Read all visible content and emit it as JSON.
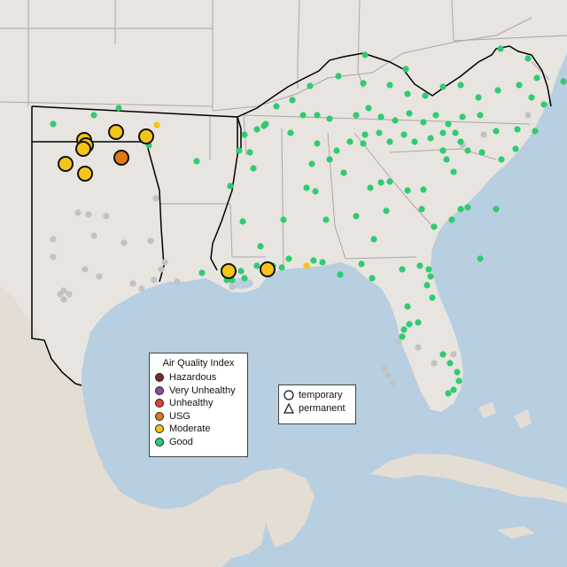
{
  "colors": {
    "water": "#b7cfe0",
    "land": "#e8e4df",
    "land_mexico": "#e4ddd3",
    "state_border": "#a9a9a9",
    "region_border": "#000000",
    "hazardous": "#7e2a22",
    "very_unhealthy": "#8e4aa8",
    "unhealthy": "#e3412f",
    "usg": "#e07a17",
    "moderate": "#f4c518",
    "good": "#2ecc71",
    "no_data": "#c2c2c2"
  },
  "legend": {
    "title": "Air Quality Index",
    "items": [
      {
        "label": "Hazardous",
        "color": "#7e2a22"
      },
      {
        "label": "Very Unhealthy",
        "color": "#8e4aa8"
      },
      {
        "label": "Unhealthy",
        "color": "#e3412f"
      },
      {
        "label": "USG",
        "color": "#e07a17"
      },
      {
        "label": "Moderate",
        "color": "#f4c518"
      },
      {
        "label": "Good",
        "color": "#2ecc71"
      }
    ]
  },
  "shape_legend": {
    "temporary": "temporary",
    "permanent": "permanent"
  },
  "monitor_levels": {
    "good": 180,
    "moderate": 11,
    "usg": 1,
    "no_data": 40
  }
}
